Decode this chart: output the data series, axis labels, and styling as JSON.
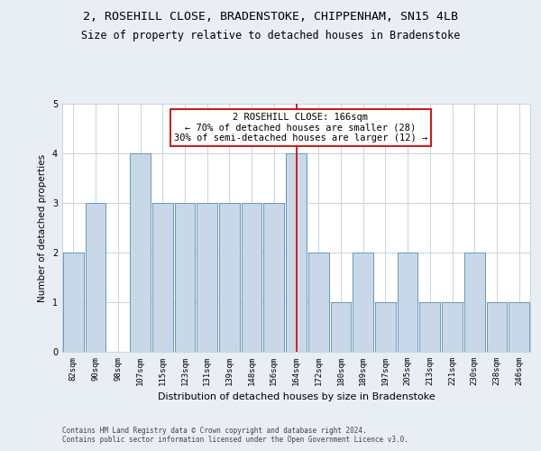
{
  "title_line1": "2, ROSEHILL CLOSE, BRADENSTOKE, CHIPPENHAM, SN15 4LB",
  "title_line2": "Size of property relative to detached houses in Bradenstoke",
  "xlabel": "Distribution of detached houses by size in Bradenstoke",
  "ylabel": "Number of detached properties",
  "categories": [
    "82sqm",
    "90sqm",
    "98sqm",
    "107sqm",
    "115sqm",
    "123sqm",
    "131sqm",
    "139sqm",
    "148sqm",
    "156sqm",
    "164sqm",
    "172sqm",
    "180sqm",
    "189sqm",
    "197sqm",
    "205sqm",
    "213sqm",
    "221sqm",
    "230sqm",
    "238sqm",
    "246sqm"
  ],
  "values": [
    2,
    3,
    0,
    4,
    3,
    3,
    3,
    3,
    3,
    3,
    4,
    2,
    1,
    2,
    1,
    2,
    1,
    1,
    2,
    1,
    1
  ],
  "bar_color": "#c8d8e8",
  "bar_edge_color": "#6699bb",
  "highlight_index": 10,
  "highlight_line_color": "#cc0000",
  "annotation_text": "2 ROSEHILL CLOSE: 166sqm\n← 70% of detached houses are smaller (28)\n30% of semi-detached houses are larger (12) →",
  "annotation_box_color": "#ffffff",
  "annotation_box_edge_color": "#cc0000",
  "ylim": [
    0,
    5
  ],
  "yticks": [
    0,
    1,
    2,
    3,
    4,
    5
  ],
  "footer_text": "Contains HM Land Registry data © Crown copyright and database right 2024.\nContains public sector information licensed under the Open Government Licence v3.0.",
  "background_color": "#e8eef4",
  "plot_bg_color": "#ffffff",
  "grid_color": "#c8d4e0",
  "title_fontsize": 9.5,
  "subtitle_fontsize": 8.5,
  "tick_fontsize": 6.5,
  "label_fontsize": 8,
  "annotation_fontsize": 7.5,
  "footer_fontsize": 5.5
}
